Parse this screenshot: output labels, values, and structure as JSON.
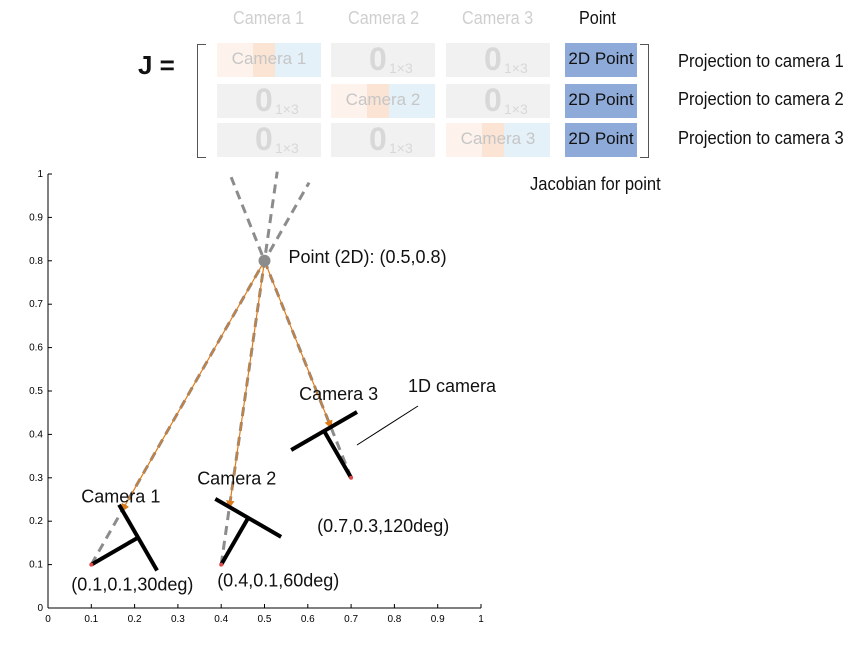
{
  "matrix": {
    "lhs": "J =",
    "column_headers": [
      "Camera 1",
      "Camera 2",
      "Camera 3",
      "Point"
    ],
    "zero_symbol": "0",
    "zero_subscript": "1×3",
    "camera_cells": [
      "Camera 1",
      "Camera 2",
      "Camera 3"
    ],
    "point_cell": "2D Point",
    "row_labels": [
      "Projection to camera 1",
      "Projection to camera 2",
      "Projection to camera 3"
    ],
    "point_column_caption": "Jacobian for point"
  },
  "plot": {
    "x_ticks": [
      "0",
      "0.1",
      "0.2",
      "0.3",
      "0.4",
      "0.5",
      "0.6",
      "0.7",
      "0.8",
      "0.9",
      "1"
    ],
    "y_ticks": [
      "0",
      "0.1",
      "0.2",
      "0.3",
      "0.4",
      "0.5",
      "0.6",
      "0.7",
      "0.8",
      "0.9",
      "1"
    ],
    "xlim": [
      0,
      1
    ],
    "ylim": [
      0,
      1
    ],
    "point": {
      "x": 0.5,
      "y": 0.8,
      "label": "Point (2D): (0.5,0.8)"
    },
    "cameras": [
      {
        "name": "Camera 1",
        "x": 0.1,
        "y": 0.1,
        "deg": 30,
        "pose_label": "(0.1,0.1,30deg)"
      },
      {
        "name": "Camera 2",
        "x": 0.4,
        "y": 0.1,
        "deg": 60,
        "pose_label": "(0.4,0.1,60deg)"
      },
      {
        "name": "Camera 3",
        "x": 0.7,
        "y": 0.3,
        "deg": 120,
        "pose_label": "(0.7,0.3,120deg)"
      }
    ],
    "annotation": "1D camera",
    "colors": {
      "ray": "#e07b1a",
      "dashed": "#8c8c8c",
      "point": "#8c8c8c",
      "camera": "#000000"
    }
  }
}
